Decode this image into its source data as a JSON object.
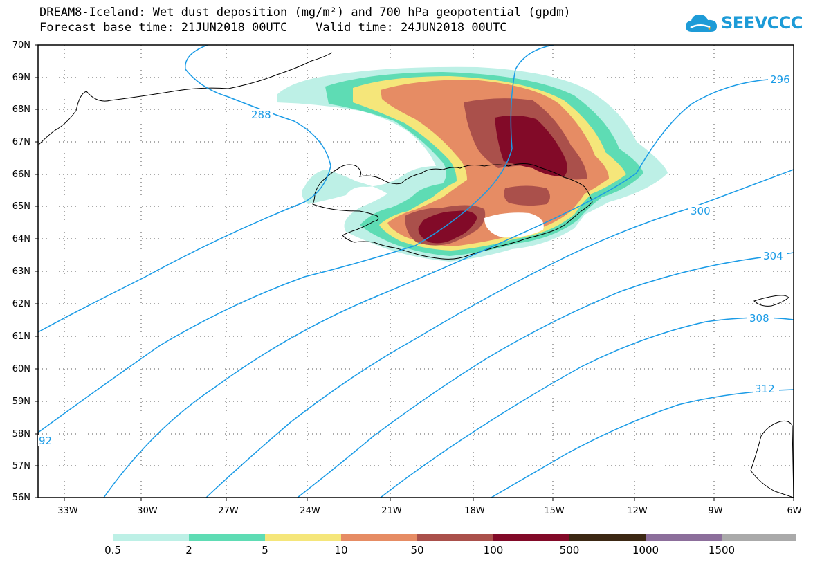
{
  "title": {
    "line1": "DREAM8-Iceland: Wet dust deposition (mg/m²) and 700 hPa geopotential (gpdm)",
    "line2": "Forecast base time: 21JUN2018 00UTC    Valid time: 24JUN2018 00UTC"
  },
  "logo": {
    "text": "SEEVCCC",
    "icon": "cloud-icon",
    "color": "#1d9bd7"
  },
  "map": {
    "lat_labels": [
      "70N",
      "69N",
      "68N",
      "67N",
      "66N",
      "65N",
      "64N",
      "63N",
      "62N",
      "61N",
      "60N",
      "59N",
      "58N",
      "57N",
      "56N"
    ],
    "lon_labels": [
      "33W",
      "30W",
      "27W",
      "24W",
      "21W",
      "18W",
      "15W",
      "12W",
      "9W",
      "6W"
    ],
    "contour_color": "#1a9be6",
    "contour_labels": [
      "288",
      "296",
      "300",
      "304",
      "308",
      "312",
      "92"
    ]
  },
  "legend": {
    "colors": [
      "#bdf0e6",
      "#5edcb4",
      "#f5e67a",
      "#e68c64",
      "#aa504b",
      "#820a28",
      "#3c2814",
      "#8c6e9b",
      "#aaaaaa"
    ],
    "labels": [
      "0.5",
      "2",
      "5",
      "10",
      "50",
      "100",
      "500",
      "1000",
      "1500"
    ]
  }
}
